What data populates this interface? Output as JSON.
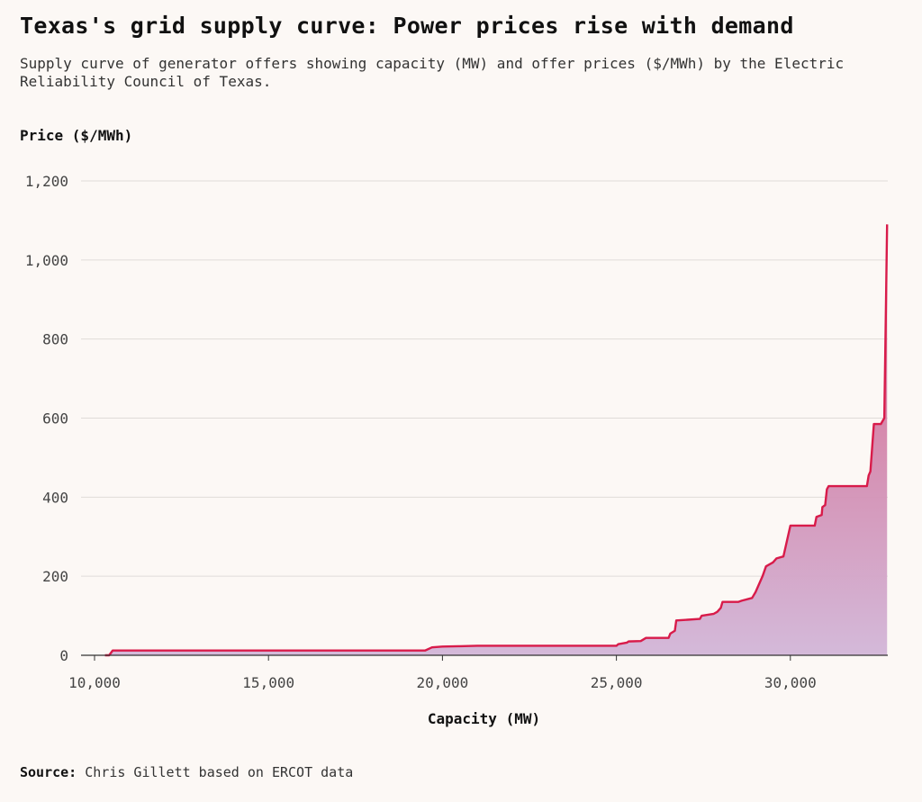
{
  "header": {
    "title": "Texas's grid supply curve: Power prices rise with demand",
    "subtitle": "Supply curve of generator offers showing capacity (MW) and offer prices ($/MWh) by the Electric Reliability Council of Texas."
  },
  "footer": {
    "source_label": "Source:",
    "source_text": "Chris Gillett based on ERCOT data"
  },
  "colors": {
    "line": "#d81b4a",
    "fill_top": "#d5577f",
    "fill_bottom": "#d2b6d8",
    "grid": "#e0dcd9",
    "axis": "#333333"
  },
  "chart_data": {
    "type": "area",
    "title": "Texas's grid supply curve: Power prices rise with demand",
    "xlabel": "Capacity (MW)",
    "ylabel": "Price ($/MWh)",
    "xlim": [
      10000,
      32800
    ],
    "ylim": [
      0,
      1200
    ],
    "xticks": [
      10000,
      15000,
      20000,
      25000,
      30000
    ],
    "xtick_labels": [
      "10,000",
      "15,000",
      "20,000",
      "25,000",
      "30,000"
    ],
    "yticks": [
      0,
      200,
      400,
      600,
      800,
      1000,
      1200
    ],
    "ytick_labels": [
      "0",
      "200",
      "400",
      "600",
      "800",
      "1,000",
      "1,200"
    ],
    "grid": true,
    "legend": "none",
    "series": [
      {
        "x": [
          10300,
          10420,
          10520,
          12000,
          15000,
          19500,
          19700,
          20000,
          20500,
          21000,
          23000,
          25000,
          25050,
          25300,
          25350,
          25700,
          25850,
          26500,
          26550,
          26680,
          26720,
          27400,
          27450,
          27800,
          27900,
          28000,
          28050,
          28500,
          28600,
          28900,
          29000,
          29200,
          29300,
          29500,
          29600,
          29800,
          30000,
          30700,
          30750,
          30900,
          30920,
          31000,
          31050,
          31100,
          32200,
          32250,
          32300,
          32400,
          32500,
          32600,
          32700,
          32750,
          32780
        ],
        "y": [
          0,
          0,
          12,
          12,
          12,
          12,
          20,
          22,
          23,
          24,
          24,
          24,
          28,
          32,
          35,
          36,
          44,
          44,
          55,
          62,
          88,
          92,
          100,
          105,
          110,
          120,
          135,
          135,
          138,
          145,
          160,
          200,
          225,
          235,
          245,
          250,
          328,
          328,
          350,
          355,
          375,
          380,
          420,
          428,
          428,
          455,
          465,
          585,
          585,
          585,
          600,
          900,
          1090
        ]
      }
    ]
  }
}
